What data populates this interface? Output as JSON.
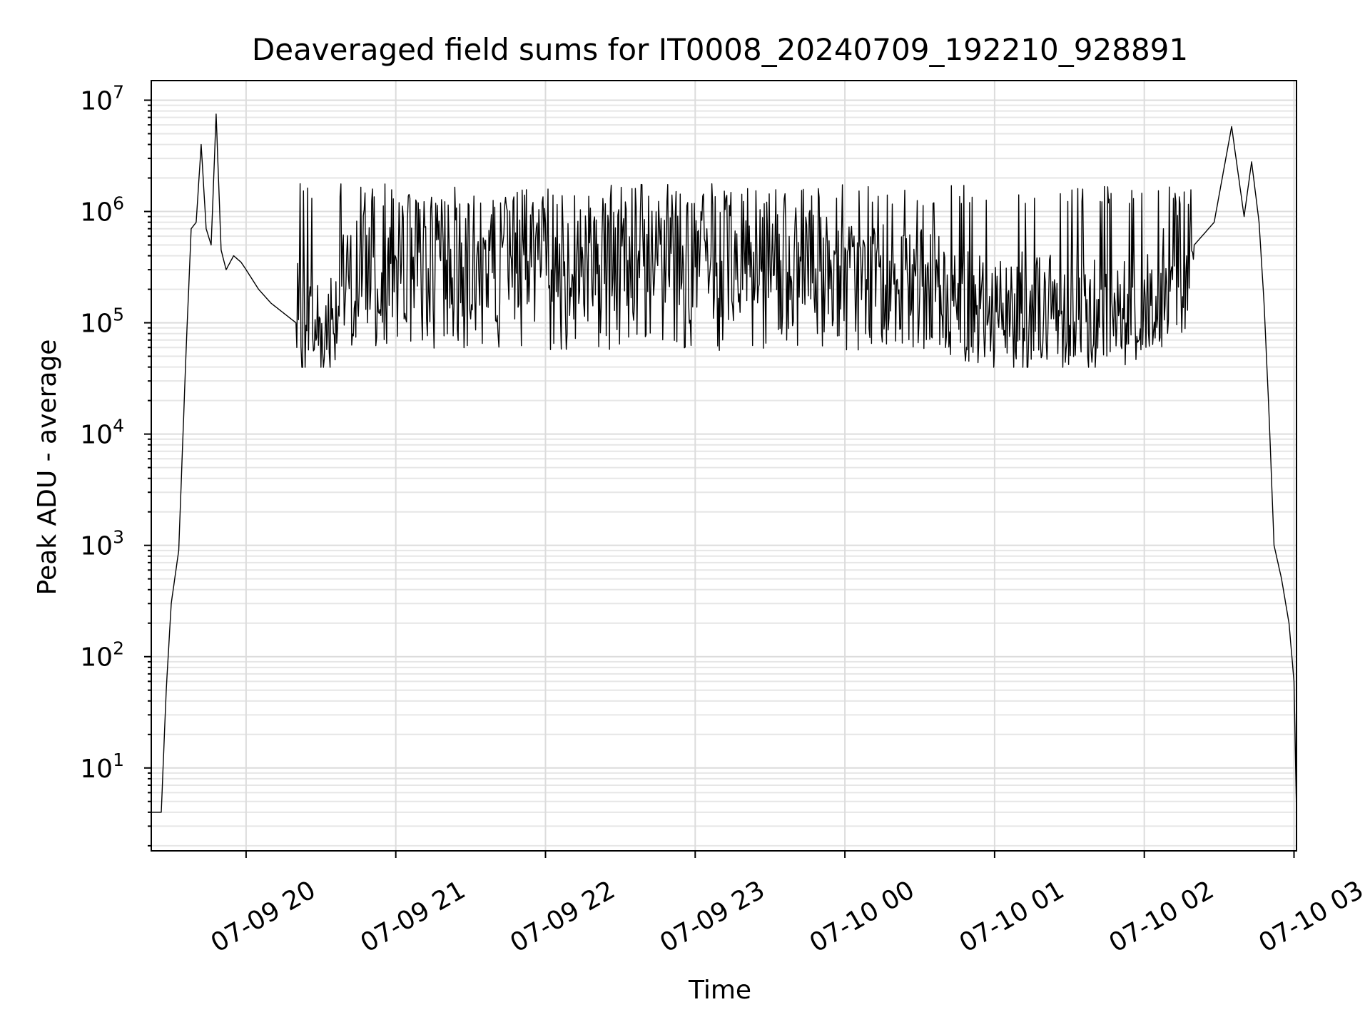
{
  "chart_data": {
    "type": "line",
    "title": "Deaveraged field sums for IT0008_20240709_192210_928891",
    "xlabel": "Time",
    "ylabel": "Peak ADU - average",
    "yscale": "log",
    "ylim": [
      1.8,
      15000000
    ],
    "xlim": [
      "2024-07-09 19:22",
      "2024-07-10 03:01"
    ],
    "grid": true,
    "line_color": "#000000",
    "x_ticks": [
      "07-09 20",
      "07-09 21",
      "07-09 22",
      "07-09 23",
      "07-10 00",
      "07-10 01",
      "07-10 02",
      "07-10 03"
    ],
    "y_ticks": [
      {
        "base": "10",
        "exp": "1"
      },
      {
        "base": "10",
        "exp": "2"
      },
      {
        "base": "10",
        "exp": "3"
      },
      {
        "base": "10",
        "exp": "4"
      },
      {
        "base": "10",
        "exp": "5"
      },
      {
        "base": "10",
        "exp": "6"
      },
      {
        "base": "10",
        "exp": "7"
      }
    ],
    "series": [
      {
        "x": [
          "2024-07-09 19:22",
          "2024-07-09 19:25",
          "2024-07-09 19:26",
          "2024-07-09 19:28",
          "2024-07-09 19:30",
          "2024-07-09 19:33",
          "2024-07-09 19:36",
          "2024-07-09 19:38",
          "2024-07-09 19:40",
          "2024-07-09 19:42",
          "2024-07-09 19:44",
          "2024-07-09 19:46",
          "2024-07-09 19:48",
          "2024-07-09 19:50",
          "2024-07-09 19:52",
          "2024-07-09 19:55",
          "2024-07-09 19:58",
          "2024-07-09 20:00",
          "2024-07-09 20:05",
          "2024-07-09 20:10",
          "2024-07-09 20:20",
          "2024-07-09 20:30",
          "2024-07-09 20:45",
          "2024-07-09 21:00",
          "2024-07-09 21:30",
          "2024-07-09 22:00",
          "2024-07-09 22:30",
          "2024-07-09 23:00",
          "2024-07-09 23:30",
          "2024-07-10 00:00",
          "2024-07-10 00:30",
          "2024-07-10 01:00",
          "2024-07-10 01:30",
          "2024-07-10 02:00",
          "2024-07-10 02:10",
          "2024-07-10 02:20",
          "2024-07-10 02:28",
          "2024-07-10 02:35",
          "2024-07-10 02:40",
          "2024-07-10 02:43",
          "2024-07-10 02:46",
          "2024-07-10 02:48",
          "2024-07-10 02:50",
          "2024-07-10 02:52",
          "2024-07-10 02:55",
          "2024-07-10 02:58",
          "2024-07-10 03:00",
          "2024-07-10 03:01"
        ],
        "y": [
          4,
          4,
          4,
          50,
          300,
          900,
          60000,
          700000,
          800000,
          4000000,
          700000,
          500000,
          7500000,
          450000,
          300000,
          400000,
          350000,
          300000,
          200000,
          150000,
          100000,
          90000,
          300000,
          350000,
          350000,
          360000,
          370000,
          340000,
          330000,
          260000,
          200000,
          130000,
          120000,
          130000,
          260000,
          500000,
          800000,
          5800000,
          900000,
          2800000,
          800000,
          150000,
          15000,
          1000,
          500,
          200,
          60,
          4
        ]
      }
    ]
  }
}
